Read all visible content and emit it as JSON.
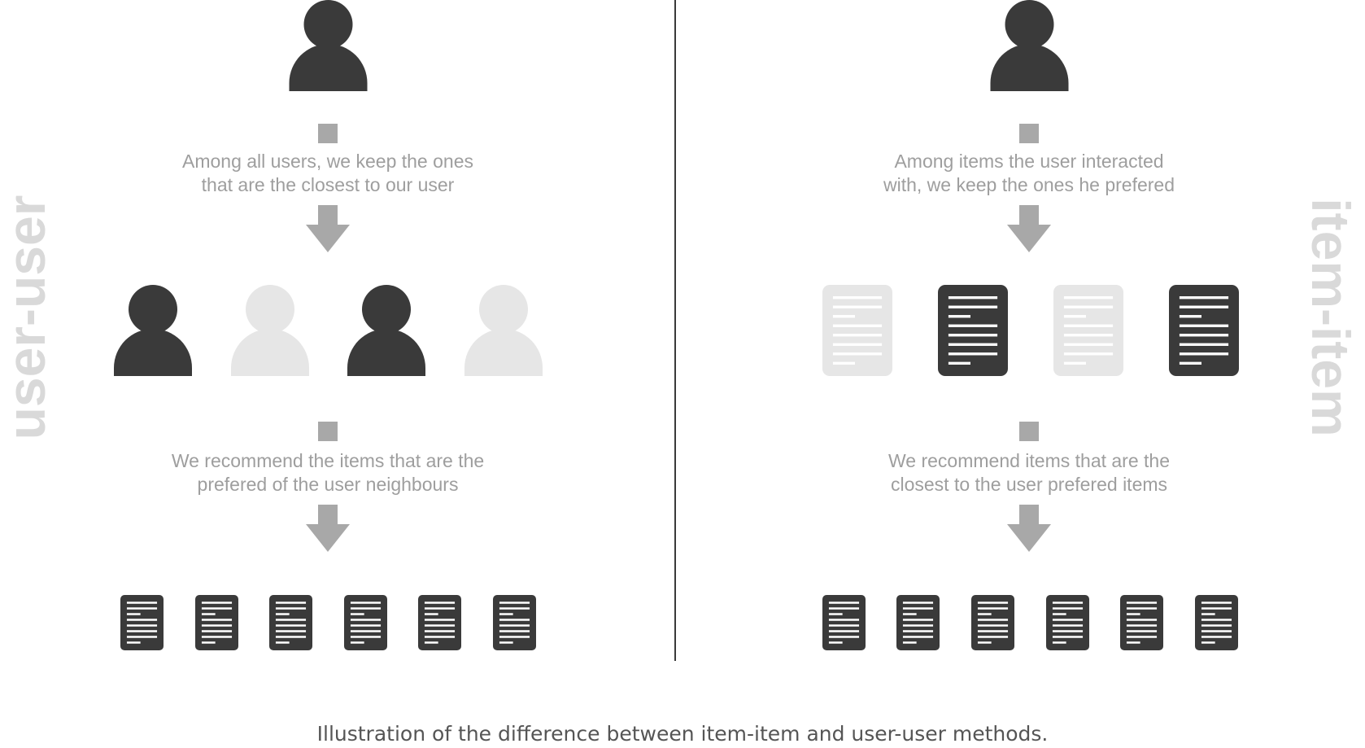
{
  "labels": {
    "left_side": "user-user",
    "right_side": "item-item"
  },
  "left_panel": {
    "step1_line1": "Among all users, we keep the ones",
    "step1_line2": "that are the closest to our user",
    "step2_line1": "We recommend the items that are the",
    "step2_line2": "prefered of the user neighbours"
  },
  "right_panel": {
    "step1_line1": "Among items the user interacted",
    "step1_line2": "with, we keep the ones he prefered",
    "step2_line1": "We recommend items that are the",
    "step2_line2": "closest to the user prefered items"
  },
  "caption": "Illustration of the difference between item-item and user-user methods.",
  "colors": {
    "dark": "#3a3a3a",
    "light": "#e6e6e6",
    "connector": "#a8a8a8",
    "side_label": "#d9d9d9"
  },
  "icons": {
    "user": "user-icon",
    "document": "document-icon",
    "arrow": "arrow-down-icon"
  }
}
